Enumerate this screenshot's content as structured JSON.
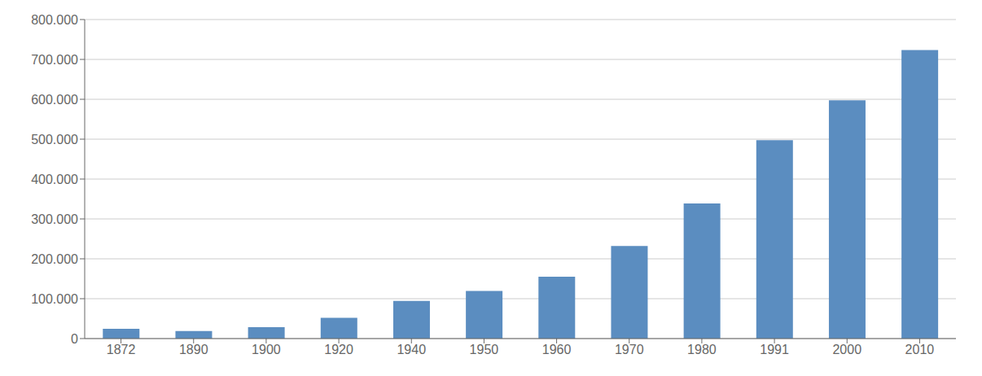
{
  "chart_data": {
    "type": "bar",
    "categories": [
      "1872",
      "1890",
      "1900",
      "1920",
      "1940",
      "1950",
      "1960",
      "1970",
      "1980",
      "1991",
      "2000",
      "2010"
    ],
    "values": [
      24689,
      18645,
      28793,
      52000,
      94333,
      119326,
      155117,
      232149,
      338629,
      497600,
      597515,
      723515
    ],
    "color": "#5b8dc0",
    "ylim": [
      0,
      800000
    ],
    "yticks": [
      0,
      {
        "value": 100000,
        "label": "100.000"
      },
      {
        "value": 200000,
        "label": "200.000"
      },
      {
        "value": 300000,
        "label": "300.000"
      },
      {
        "value": 400000,
        "label": "400.000"
      },
      {
        "value": 500000,
        "label": "500.000"
      },
      {
        "value": 600000,
        "label": "600.000"
      },
      {
        "value": 700000,
        "label": "700.000"
      },
      {
        "value": 800000,
        "label": "800.000"
      }
    ],
    "grid": true
  }
}
